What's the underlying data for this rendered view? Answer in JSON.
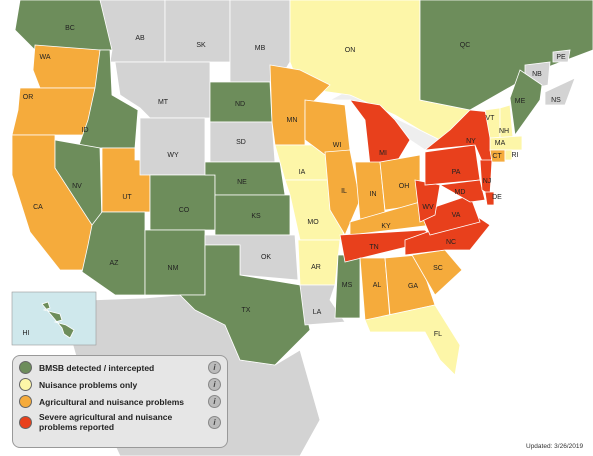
{
  "regions": [
    {
      "label": "BC",
      "color": "#6d8d5b"
    },
    {
      "label": "AB",
      "color": "#d3d3d3"
    },
    {
      "label": "SK",
      "color": "#d3d3d3"
    },
    {
      "label": "MB",
      "color": "#d3d3d3"
    },
    {
      "label": "ON",
      "color": "#fdf6a8"
    },
    {
      "label": "QC",
      "color": "#6d8d5b"
    },
    {
      "label": "NB",
      "color": "#d3d3d3"
    },
    {
      "label": "NS",
      "color": "#d3d3d3"
    },
    {
      "label": "PE",
      "color": "#d3d3d3"
    },
    {
      "label": "WA",
      "color": "#f5ab3c"
    },
    {
      "label": "OR",
      "color": "#f5ab3c"
    },
    {
      "label": "CA",
      "color": "#f5ab3c"
    },
    {
      "label": "ID",
      "color": "#6d8d5b"
    },
    {
      "label": "NV",
      "color": "#6d8d5b"
    },
    {
      "label": "UT",
      "color": "#f5ab3c"
    },
    {
      "label": "AZ",
      "color": "#6d8d5b"
    },
    {
      "label": "MT",
      "color": "#d3d3d3"
    },
    {
      "label": "WY",
      "color": "#d3d3d3"
    },
    {
      "label": "CO",
      "color": "#6d8d5b"
    },
    {
      "label": "NM",
      "color": "#6d8d5b"
    },
    {
      "label": "ND",
      "color": "#6d8d5b"
    },
    {
      "label": "SD",
      "color": "#d3d3d3"
    },
    {
      "label": "NE",
      "color": "#6d8d5b"
    },
    {
      "label": "KS",
      "color": "#6d8d5b"
    },
    {
      "label": "OK",
      "color": "#d3d3d3"
    },
    {
      "label": "TX",
      "color": "#6d8d5b"
    },
    {
      "label": "MN",
      "color": "#f5ab3c"
    },
    {
      "label": "IA",
      "color": "#fdf6a8"
    },
    {
      "label": "MO",
      "color": "#fdf6a8"
    },
    {
      "label": "AR",
      "color": "#fdf6a8"
    },
    {
      "label": "LA",
      "color": "#d3d3d3"
    },
    {
      "label": "MS",
      "color": "#6d8d5b"
    },
    {
      "label": "WI",
      "color": "#f5ab3c"
    },
    {
      "label": "IL",
      "color": "#f5ab3c"
    },
    {
      "label": "MI",
      "color": "#e8401c"
    },
    {
      "label": "IN",
      "color": "#f5ab3c"
    },
    {
      "label": "OH",
      "color": "#f5ab3c"
    },
    {
      "label": "KY",
      "color": "#f5ab3c"
    },
    {
      "label": "TN",
      "color": "#e8401c"
    },
    {
      "label": "AL",
      "color": "#f5ab3c"
    },
    {
      "label": "GA",
      "color": "#f5ab3c"
    },
    {
      "label": "FL",
      "color": "#fdf6a8"
    },
    {
      "label": "SC",
      "color": "#f5ab3c"
    },
    {
      "label": "NC",
      "color": "#e8401c"
    },
    {
      "label": "VA",
      "color": "#e8401c"
    },
    {
      "label": "WV",
      "color": "#e8401c"
    },
    {
      "label": "PA",
      "color": "#e8401c"
    },
    {
      "label": "NY",
      "color": "#e8401c"
    },
    {
      "label": "MD",
      "color": "#e8401c"
    },
    {
      "label": "NJ",
      "color": "#e8401c"
    },
    {
      "label": "DE",
      "color": "#e8401c"
    },
    {
      "label": "VT",
      "color": "#fdf6a8"
    },
    {
      "label": "NH",
      "color": "#fdf6a8"
    },
    {
      "label": "ME",
      "color": "#6d8d5b"
    },
    {
      "label": "MA",
      "color": "#fdf6a8"
    },
    {
      "label": "CT",
      "color": "#f5ab3c"
    },
    {
      "label": "RI",
      "color": "#fdf6a8"
    },
    {
      "label": "HI",
      "color": "#6d8d5b"
    }
  ],
  "legend": [
    {
      "label": "BMSB detected / intercepted",
      "color": "#6d8d5b"
    },
    {
      "label": "Nuisance problems only",
      "color": "#fdf6a8"
    },
    {
      "label": "Agricultural and nuisance problems",
      "color": "#f5ab3c"
    },
    {
      "label": "Severe agricultural and nuisance problems reported",
      "color": "#e8401c"
    }
  ],
  "info_icon": "i",
  "updated": "Updated: 3/26/2019"
}
